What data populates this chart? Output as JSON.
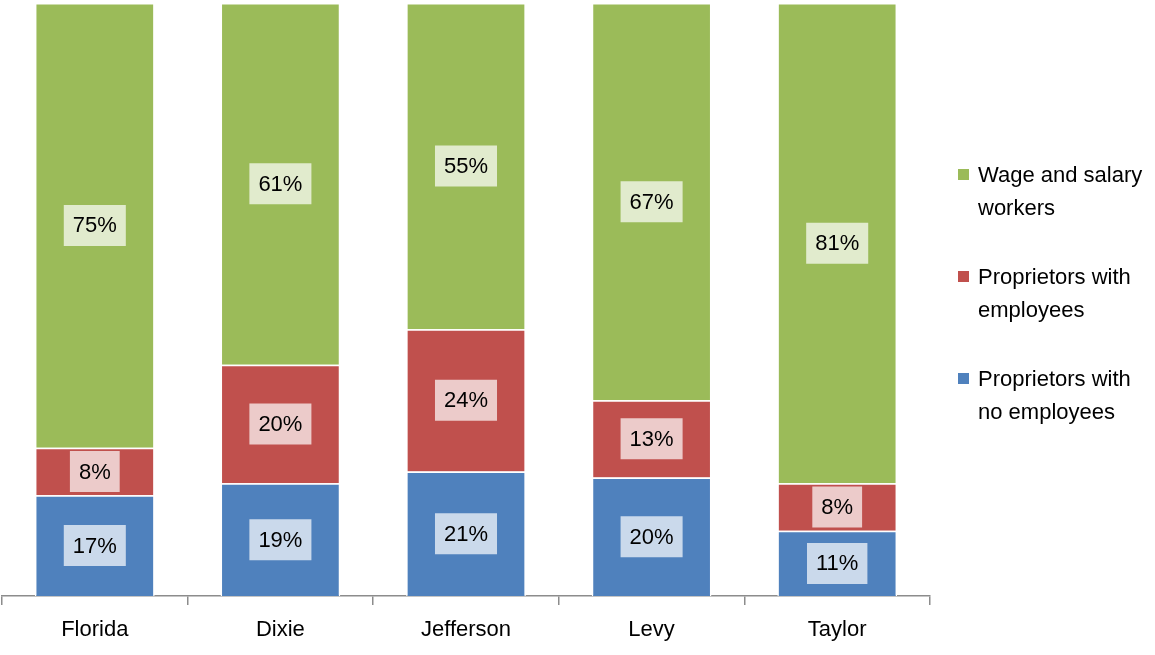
{
  "chart_data": {
    "type": "bar",
    "stacked": true,
    "categories": [
      "Florida",
      "Dixie",
      "Jefferson",
      "Levy",
      "Taylor"
    ],
    "series": [
      {
        "name": "Proprietors with no employees",
        "color": "#4f81bd",
        "values": [
          17,
          19,
          21,
          20,
          11
        ],
        "value_labels": [
          "17%",
          "19%",
          "21%",
          "20%",
          "11%"
        ]
      },
      {
        "name": "Proprietors with employees",
        "color": "#c0504d",
        "values": [
          8,
          20,
          24,
          13,
          8
        ],
        "value_labels": [
          "8%",
          "20%",
          "24%",
          "13%",
          "8%"
        ]
      },
      {
        "name": "Wage and salary workers",
        "color": "#9bbb59",
        "values": [
          75,
          61,
          55,
          67,
          81
        ],
        "value_labels": [
          "75%",
          "61%",
          "55%",
          "67%",
          "81%"
        ]
      }
    ],
    "ylim": [
      0,
      100
    ],
    "tick_labels": "x",
    "legend": "right",
    "grid": false
  }
}
